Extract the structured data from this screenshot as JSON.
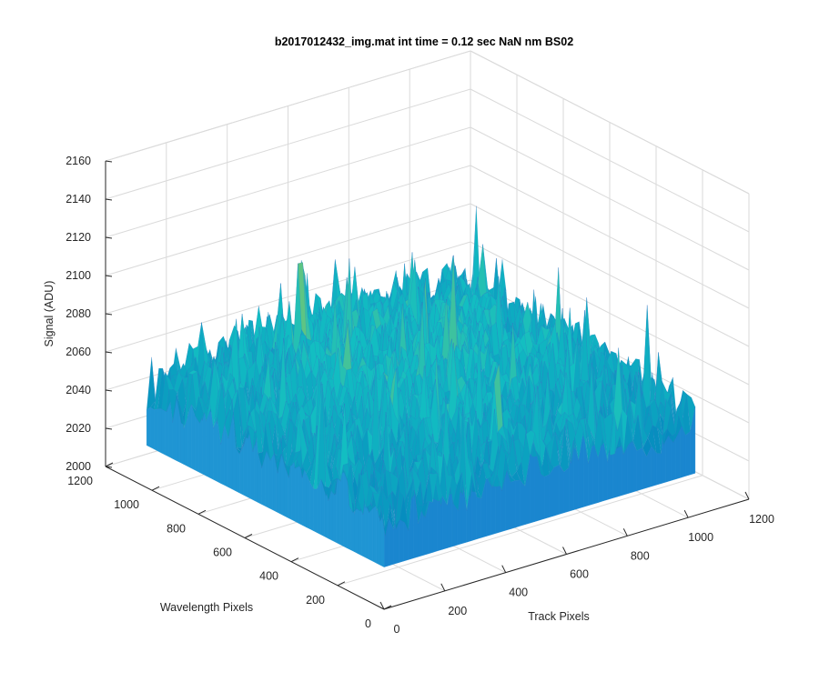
{
  "chart_data": {
    "type": "surface",
    "title": "b2017012432_img.mat int time = 0.12 sec  NaN nm BS02",
    "xlabel": "Track Pixels",
    "ylabel": "Wavelength Pixels",
    "zlabel": "Signal (ADU)",
    "xlim": [
      0,
      1200
    ],
    "ylim": [
      0,
      1200
    ],
    "zlim": [
      2000,
      2160
    ],
    "x_ticks": [
      "0",
      "200",
      "400",
      "600",
      "800",
      "1000",
      "1200"
    ],
    "y_ticks": [
      "0",
      "200",
      "400",
      "600",
      "800",
      "1000",
      "1200"
    ],
    "z_ticks": [
      "2000",
      "2020",
      "2040",
      "2060",
      "2080",
      "2100",
      "2120",
      "2140",
      "2160"
    ],
    "x_extent": [
      1,
      1024
    ],
    "y_extent": [
      1,
      1024
    ],
    "z_typical_range": [
      2030,
      2080
    ],
    "z_mean": 2055,
    "z_peak_max": 2150,
    "z_dip_min": 2025,
    "grid": true,
    "box": true,
    "colormap": "parula",
    "colors": {
      "low": "#0072bd",
      "mid": "#12bec2",
      "high": "#e6c33a",
      "axes": "#262626",
      "grid": "#dadada"
    }
  }
}
